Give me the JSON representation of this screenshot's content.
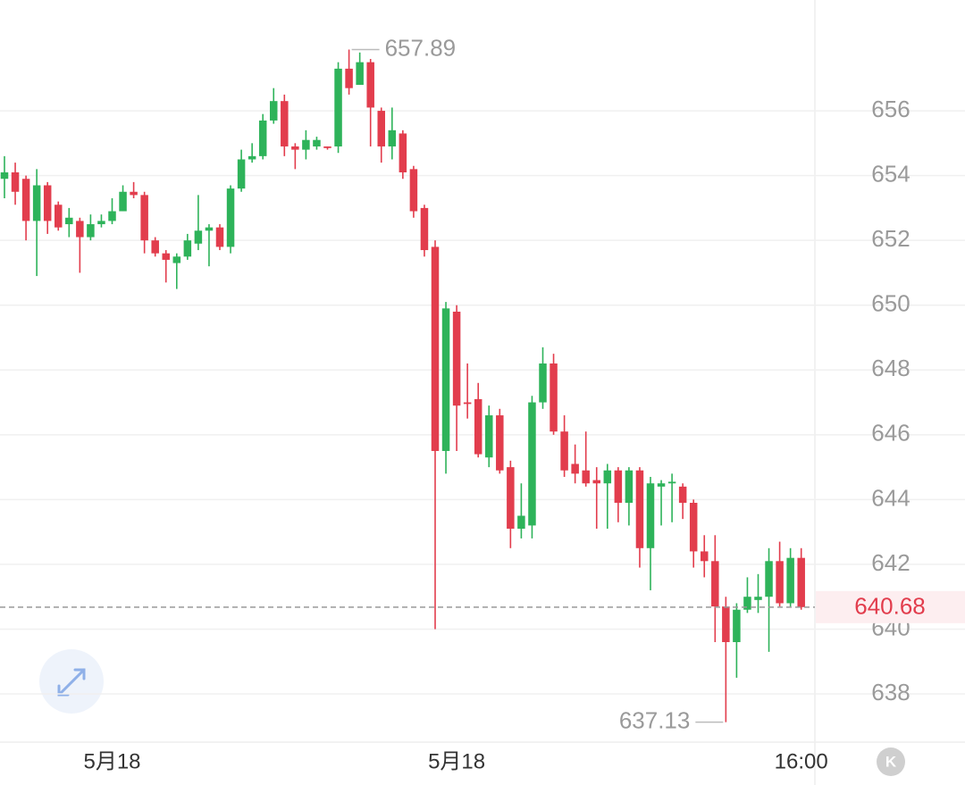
{
  "chart_data": {
    "type": "candlestick",
    "categories": [
      null,
      null,
      null,
      null,
      null,
      null,
      null,
      null,
      null,
      null,
      "5月18",
      null,
      null,
      null,
      null,
      null,
      null,
      null,
      null,
      null,
      null,
      null,
      null,
      null,
      null,
      null,
      null,
      null,
      null,
      null,
      null,
      null,
      null,
      null,
      null,
      null,
      null,
      null,
      null,
      null,
      null,
      null,
      "5月18",
      null,
      null,
      null,
      null,
      null,
      null,
      null,
      null,
      null,
      null,
      null,
      null,
      null,
      null,
      null,
      null,
      null,
      null,
      null,
      null,
      null,
      null,
      null,
      null,
      null,
      null,
      null,
      null,
      null,
      null,
      null,
      "16:00"
    ],
    "open": [
      653.9,
      654.1,
      653.9,
      652.6,
      653.7,
      653.1,
      652.5,
      652.6,
      652.1,
      652.5,
      652.6,
      652.9,
      653.5,
      653.4,
      652.0,
      651.6,
      651.3,
      651.5,
      651.9,
      652.3,
      652.4,
      651.8,
      653.6,
      654.5,
      654.6,
      655.7,
      656.3,
      654.9,
      654.8,
      654.9,
      654.9,
      654.9,
      657.3,
      656.8,
      657.5,
      656.0,
      654.9,
      655.3,
      654.2,
      653.0,
      651.8,
      645.5,
      649.8,
      647.0,
      647.1,
      645.3,
      646.6,
      645.0,
      643.1,
      643.2,
      647.0,
      648.2,
      646.1,
      645.1,
      644.9,
      644.6,
      644.5,
      644.9,
      643.9,
      644.9,
      642.5,
      644.4,
      644.5,
      644.4,
      643.9,
      642.4,
      642.1,
      640.7,
      639.6,
      640.6,
      640.9,
      641.0,
      642.1,
      640.8,
      642.2
    ],
    "high": [
      654.6,
      654.4,
      654.0,
      654.2,
      653.8,
      653.2,
      653.0,
      652.7,
      652.8,
      652.8,
      653.3,
      653.7,
      653.8,
      653.5,
      652.1,
      651.7,
      651.6,
      652.2,
      653.4,
      652.5,
      652.5,
      653.7,
      654.8,
      655.0,
      655.9,
      656.7,
      656.5,
      655.0,
      655.4,
      655.2,
      654.9,
      657.5,
      657.89,
      657.8,
      657.6,
      656.1,
      656.1,
      655.4,
      654.3,
      653.1,
      652.0,
      650.1,
      650.0,
      648.2,
      647.6,
      646.9,
      646.8,
      645.2,
      644.5,
      647.2,
      648.7,
      648.5,
      646.6,
      645.7,
      646.1,
      645.0,
      645.1,
      645.0,
      645.0,
      645.0,
      644.7,
      644.6,
      644.8,
      644.5,
      644.0,
      642.9,
      642.9,
      641.0,
      640.8,
      641.6,
      641.7,
      642.5,
      642.7,
      642.5,
      642.5
    ],
    "low": [
      653.3,
      653.1,
      652.0,
      650.9,
      652.2,
      652.3,
      652.1,
      651.0,
      652.0,
      652.4,
      652.5,
      652.9,
      653.3,
      651.6,
      651.5,
      650.7,
      650.5,
      651.4,
      651.7,
      651.2,
      651.7,
      651.6,
      653.5,
      654.4,
      654.5,
      655.6,
      654.6,
      654.2,
      654.5,
      654.8,
      654.8,
      654.7,
      656.5,
      656.8,
      654.9,
      654.4,
      654.5,
      653.9,
      652.7,
      651.5,
      640.0,
      644.8,
      645.5,
      646.5,
      645.3,
      645.0,
      644.8,
      642.5,
      642.8,
      642.8,
      646.8,
      646.0,
      644.7,
      644.5,
      644.4,
      643.1,
      643.1,
      643.3,
      643.2,
      641.9,
      641.2,
      643.2,
      643.3,
      643.4,
      641.9,
      641.6,
      639.6,
      637.13,
      638.5,
      640.5,
      640.5,
      639.3,
      640.7,
      640.7,
      640.6
    ],
    "close": [
      654.1,
      653.5,
      652.6,
      653.7,
      652.6,
      652.4,
      652.7,
      652.1,
      652.5,
      652.6,
      652.9,
      653.5,
      653.4,
      652.0,
      651.6,
      651.4,
      651.5,
      652.0,
      652.3,
      652.4,
      651.8,
      653.6,
      654.5,
      654.6,
      655.7,
      656.3,
      654.9,
      654.8,
      655.1,
      655.1,
      654.85,
      657.3,
      656.7,
      657.5,
      656.1,
      654.9,
      655.4,
      654.1,
      652.9,
      651.7,
      645.5,
      649.9,
      646.9,
      646.95,
      645.4,
      646.6,
      644.9,
      643.1,
      643.5,
      647.0,
      648.2,
      646.1,
      644.9,
      644.8,
      644.5,
      644.5,
      644.9,
      643.9,
      644.9,
      642.5,
      644.5,
      644.5,
      644.55,
      643.9,
      642.4,
      642.1,
      640.7,
      639.6,
      640.6,
      641.0,
      641.0,
      642.1,
      640.8,
      642.2,
      640.68
    ],
    "up_color": "#2eb35a",
    "down_color": "#e23d4d",
    "ylim": [
      636.54,
      659.42
    ],
    "yticks": [
      638,
      640,
      642,
      644,
      646,
      648,
      650,
      652,
      654,
      656
    ],
    "grid": true
  },
  "toolbar": {
    "kline_button": "K"
  }
}
